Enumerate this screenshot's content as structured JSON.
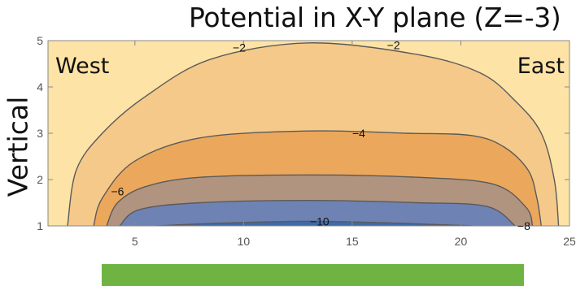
{
  "chart_data": {
    "type": "contour",
    "title": "Potential in X-Y plane (Z=-3)",
    "xlabel": "",
    "ylabel": "Vertical",
    "xlim": [
      1,
      25
    ],
    "ylim": [
      1,
      5
    ],
    "x_ticks": [
      5,
      10,
      15,
      20,
      25
    ],
    "y_ticks": [
      1,
      2,
      3,
      4,
      5
    ],
    "grid": false,
    "region_labels": {
      "left": "West",
      "right": "East"
    },
    "contour_levels": [
      {
        "level": -2,
        "points": [
          [
            1.9,
            1.0
          ],
          [
            2.3,
            2.2
          ],
          [
            3.5,
            3.0
          ],
          [
            5.5,
            3.8
          ],
          [
            8.5,
            4.6
          ],
          [
            13,
            4.95
          ],
          [
            18,
            4.7
          ],
          [
            20.9,
            4.3
          ],
          [
            22.5,
            3.7
          ],
          [
            23.7,
            3.0
          ],
          [
            24.3,
            2.0
          ],
          [
            24.5,
            1.0
          ]
        ]
      },
      {
        "level": -4,
        "points": [
          [
            3.1,
            1.0
          ],
          [
            3.5,
            1.6
          ],
          [
            5.0,
            2.4
          ],
          [
            8.0,
            2.9
          ],
          [
            13,
            3.05
          ],
          [
            17.5,
            3.0
          ],
          [
            20.5,
            2.95
          ],
          [
            22.0,
            2.7
          ],
          [
            23.1,
            2.2
          ],
          [
            23.5,
            1.6
          ],
          [
            23.7,
            1.0
          ]
        ]
      },
      {
        "level": -6,
        "points": [
          [
            3.7,
            1.0
          ],
          [
            4.2,
            1.5
          ],
          [
            5.5,
            1.85
          ],
          [
            8,
            2.05
          ],
          [
            13,
            2.1
          ],
          [
            18,
            2.05
          ],
          [
            21.5,
            1.9
          ],
          [
            23.0,
            1.4
          ],
          [
            23.3,
            1.0
          ]
        ]
      },
      {
        "level": -8,
        "points": [
          [
            4.3,
            1.0
          ],
          [
            5.2,
            1.35
          ],
          [
            8,
            1.5
          ],
          [
            13,
            1.55
          ],
          [
            18,
            1.5
          ],
          [
            21.2,
            1.42
          ],
          [
            22.5,
            1.0
          ]
        ]
      },
      {
        "level": -10,
        "points": [
          [
            6.0,
            1.0
          ],
          [
            9,
            1.06
          ],
          [
            13,
            1.1
          ],
          [
            17,
            1.06
          ],
          [
            20.5,
            1.0
          ]
        ]
      }
    ],
    "contour_label_positions": [
      {
        "text": "-2",
        "x": 9.8,
        "y": 4.85
      },
      {
        "text": "-2",
        "x": 16.9,
        "y": 4.9
      },
      {
        "text": "-4",
        "x": 15.3,
        "y": 3.0
      },
      {
        "text": "-6",
        "x": 4.2,
        "y": 1.75
      },
      {
        "text": "-8",
        "x": 22.9,
        "y": 1.0
      },
      {
        "text": "-10",
        "x": 13.5,
        "y": 1.1
      }
    ],
    "fill_colors": [
      "#fde3a6",
      "#f5c98a",
      "#eba85c",
      "#b0947f",
      "#6e82b4",
      "#3f6aa8"
    ],
    "contour_line_color": "#5a5a5a"
  },
  "green_bar_color": "#6fb443"
}
